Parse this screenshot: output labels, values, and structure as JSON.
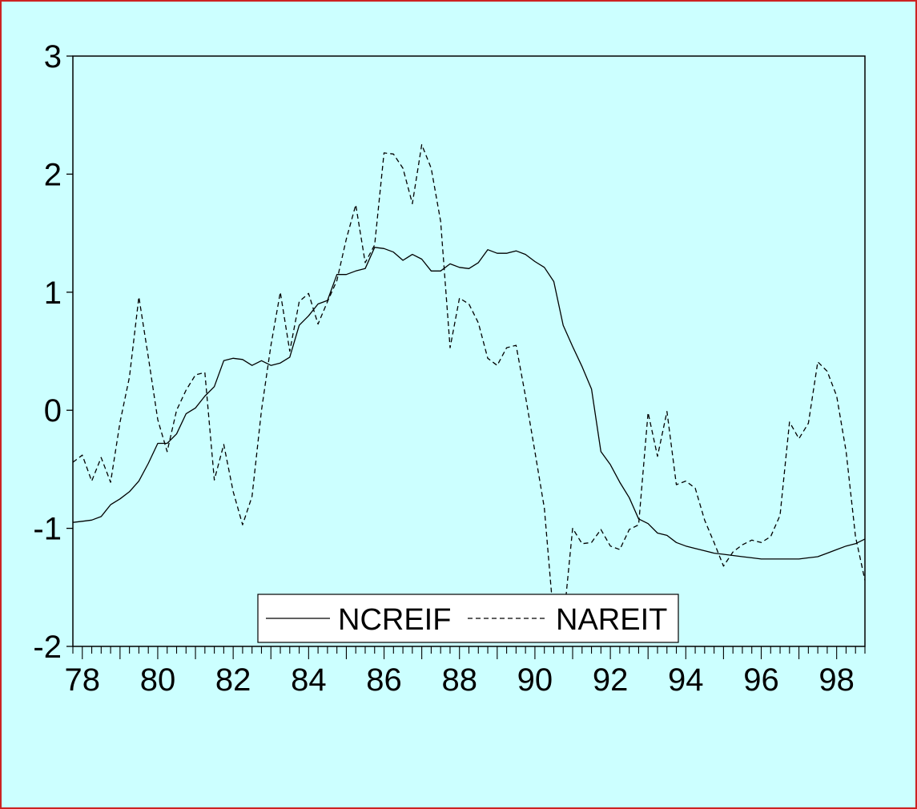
{
  "chart_data": {
    "type": "line",
    "title": "",
    "xlabel": "",
    "ylabel": "",
    "xlim": [
      1977.75,
      1998.75
    ],
    "ylim": [
      -2,
      3
    ],
    "y_ticks": [
      "-2",
      "-1",
      "0",
      "1",
      "2",
      "3"
    ],
    "x_ticks": [
      "78",
      "80",
      "82",
      "84",
      "86",
      "88",
      "90",
      "92",
      "94",
      "96",
      "98"
    ],
    "grid": false,
    "legend_position": "bottom-center",
    "series": [
      {
        "name": "NCREIF",
        "style": "solid",
        "x": [
          1977.75,
          1978.0,
          1978.25,
          1978.5,
          1978.75,
          1979.0,
          1979.25,
          1979.5,
          1979.75,
          1980.0,
          1980.25,
          1980.5,
          1980.75,
          1981.0,
          1981.25,
          1981.5,
          1981.75,
          1982.0,
          1982.25,
          1982.5,
          1982.75,
          1983.0,
          1983.25,
          1983.5,
          1983.75,
          1984.0,
          1984.25,
          1984.5,
          1984.75,
          1985.0,
          1985.25,
          1985.5,
          1985.75,
          1986.0,
          1986.25,
          1986.5,
          1986.75,
          1987.0,
          1987.25,
          1987.5,
          1987.75,
          1988.0,
          1988.25,
          1988.5,
          1988.75,
          1989.0,
          1989.25,
          1989.5,
          1989.75,
          1990.0,
          1990.25,
          1990.5,
          1990.75,
          1991.0,
          1991.25,
          1991.5,
          1991.75,
          1992.0,
          1992.25,
          1992.5,
          1992.75,
          1993.0,
          1993.25,
          1993.5,
          1993.75,
          1994.0,
          1994.25,
          1994.5,
          1994.75,
          1995.0,
          1995.25,
          1995.5,
          1995.75,
          1996.0,
          1996.25,
          1996.5,
          1996.75,
          1997.0,
          1997.25,
          1997.5,
          1997.75,
          1998.0,
          1998.25,
          1998.5,
          1998.75
        ],
        "values": [
          -0.95,
          -0.94,
          -0.93,
          -0.9,
          -0.8,
          -0.75,
          -0.69,
          -0.6,
          -0.45,
          -0.28,
          -0.28,
          -0.2,
          -0.03,
          0.02,
          0.12,
          0.2,
          0.42,
          0.44,
          0.43,
          0.38,
          0.42,
          0.38,
          0.4,
          0.45,
          0.72,
          0.8,
          0.9,
          0.93,
          1.15,
          1.15,
          1.18,
          1.2,
          1.38,
          1.37,
          1.34,
          1.27,
          1.32,
          1.28,
          1.18,
          1.18,
          1.24,
          1.21,
          1.2,
          1.25,
          1.36,
          1.33,
          1.33,
          1.35,
          1.32,
          1.26,
          1.21,
          1.09,
          0.72,
          0.54,
          0.37,
          0.18,
          -0.35,
          -0.46,
          -0.61,
          -0.74,
          -0.92,
          -0.96,
          -1.04,
          -1.06,
          -1.12,
          -1.15,
          -1.17,
          -1.19,
          -1.21,
          -1.22,
          -1.23,
          -1.24,
          -1.25,
          -1.26,
          -1.26,
          -1.26,
          -1.26,
          -1.26,
          -1.25,
          -1.24,
          -1.21,
          -1.18,
          -1.15,
          -1.13,
          -1.09
        ]
      },
      {
        "name": "NAREIT",
        "style": "dashed",
        "x": [
          1977.75,
          1978.0,
          1978.25,
          1978.5,
          1978.75,
          1979.0,
          1979.25,
          1979.5,
          1979.75,
          1980.0,
          1980.25,
          1980.5,
          1980.75,
          1981.0,
          1981.25,
          1981.5,
          1981.75,
          1982.0,
          1982.25,
          1982.5,
          1982.75,
          1983.0,
          1983.25,
          1983.5,
          1983.75,
          1984.0,
          1984.25,
          1984.5,
          1984.75,
          1985.0,
          1985.25,
          1985.5,
          1985.75,
          1986.0,
          1986.25,
          1986.5,
          1986.75,
          1987.0,
          1987.25,
          1987.5,
          1987.75,
          1988.0,
          1988.25,
          1988.5,
          1988.75,
          1989.0,
          1989.25,
          1989.5,
          1989.75,
          1990.0,
          1990.25,
          1990.5,
          1990.75,
          1991.0,
          1991.25,
          1991.5,
          1991.75,
          1992.0,
          1992.25,
          1992.5,
          1992.75,
          1993.0,
          1993.25,
          1993.5,
          1993.75,
          1994.0,
          1994.25,
          1994.5,
          1994.75,
          1995.0,
          1995.25,
          1995.5,
          1995.75,
          1996.0,
          1996.25,
          1996.5,
          1996.75,
          1997.0,
          1997.25,
          1997.5,
          1997.75,
          1998.0,
          1998.25,
          1998.5,
          1998.75
        ],
        "values": [
          -0.44,
          -0.38,
          -0.6,
          -0.4,
          -0.61,
          -0.1,
          0.28,
          0.96,
          0.45,
          -0.08,
          -0.35,
          0.0,
          0.17,
          0.3,
          0.32,
          -0.59,
          -0.29,
          -0.69,
          -0.97,
          -0.73,
          0.0,
          0.55,
          1.0,
          0.5,
          0.92,
          0.99,
          0.73,
          0.92,
          1.1,
          1.45,
          1.74,
          1.25,
          1.4,
          2.18,
          2.17,
          2.05,
          1.75,
          2.25,
          2.05,
          1.6,
          0.53,
          0.95,
          0.9,
          0.74,
          0.44,
          0.38,
          0.53,
          0.55,
          0.12,
          -0.35,
          -0.83,
          -1.78,
          -1.82,
          -1.0,
          -1.13,
          -1.12,
          -1.01,
          -1.15,
          -1.18,
          -1.01,
          -0.97,
          -0.02,
          -0.39,
          -0.01,
          -0.63,
          -0.6,
          -0.66,
          -0.93,
          -1.12,
          -1.32,
          -1.2,
          -1.14,
          -1.1,
          -1.12,
          -1.07,
          -0.89,
          -0.1,
          -0.24,
          -0.11,
          0.41,
          0.33,
          0.12,
          -0.35,
          -1.07,
          -1.44
        ]
      }
    ]
  }
}
